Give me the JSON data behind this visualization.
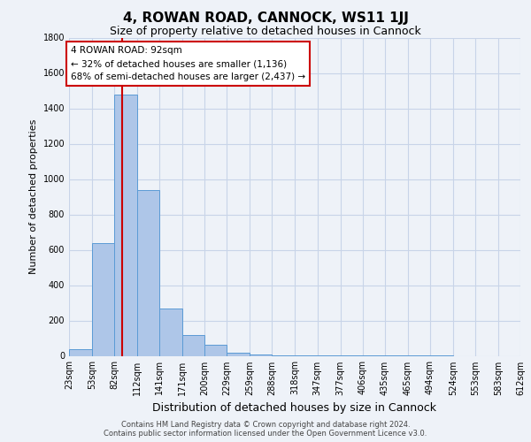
{
  "title": "4, ROWAN ROAD, CANNOCK, WS11 1JJ",
  "subtitle": "Size of property relative to detached houses in Cannock",
  "xlabel": "Distribution of detached houses by size in Cannock",
  "ylabel": "Number of detached properties",
  "bin_edges": [
    23,
    53,
    82,
    112,
    141,
    171,
    200,
    229,
    259,
    288,
    318,
    347,
    377,
    406,
    435,
    465,
    494,
    524,
    553,
    583,
    612
  ],
  "bar_heights": [
    38,
    640,
    1480,
    940,
    270,
    120,
    65,
    20,
    8,
    4,
    3,
    2,
    2,
    1,
    1,
    1,
    1,
    0,
    0,
    0
  ],
  "bar_color": "#aec6e8",
  "bar_edge_color": "#5b9bd5",
  "grid_color": "#c8d4e8",
  "background_color": "#eef2f8",
  "property_size": 92,
  "red_line_color": "#cc0000",
  "annotation_text": "4 ROWAN ROAD: 92sqm\n← 32% of detached houses are smaller (1,136)\n68% of semi-detached houses are larger (2,437) →",
  "annotation_box_color": "#ffffff",
  "annotation_box_edge": "#cc0000",
  "ylim": [
    0,
    1800
  ],
  "yticks": [
    0,
    200,
    400,
    600,
    800,
    1000,
    1200,
    1400,
    1600,
    1800
  ],
  "footer_line1": "Contains HM Land Registry data © Crown copyright and database right 2024.",
  "footer_line2": "Contains public sector information licensed under the Open Government Licence v3.0.",
  "title_fontsize": 11,
  "subtitle_fontsize": 9,
  "xlabel_fontsize": 9,
  "ylabel_fontsize": 8,
  "tick_fontsize": 7,
  "annot_fontsize": 7.5,
  "footer_fontsize": 6
}
